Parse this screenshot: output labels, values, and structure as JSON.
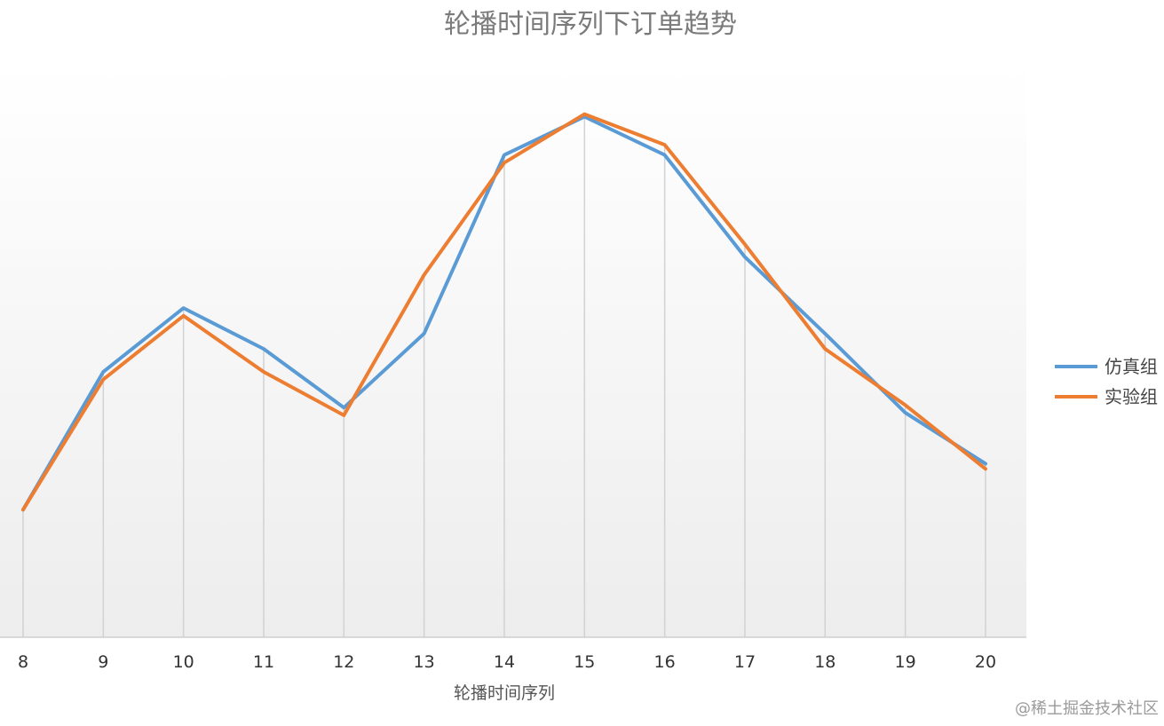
{
  "chart_data": {
    "type": "line",
    "title": "轮播时间序列下订单趋势",
    "xlabel": "轮播时间序列",
    "ylabel": "",
    "x": [
      8,
      9,
      10,
      11,
      12,
      13,
      14,
      15,
      16,
      17,
      18,
      19,
      20
    ],
    "ylim": [
      0,
      100
    ],
    "grid": "vertical",
    "legend_position": "right",
    "series": [
      {
        "name": "仿真组",
        "color": "#5B9BD5",
        "values": [
          25,
          52,
          64.5,
          56.5,
          45,
          59.5,
          94.5,
          102,
          94.5,
          74.5,
          59.5,
          44,
          34
        ]
      },
      {
        "name": "实验组",
        "color": "#ED7D31",
        "values": [
          25,
          50.5,
          63,
          52,
          43.5,
          71,
          93,
          102.5,
          96.5,
          77,
          56.5,
          45.5,
          33
        ]
      }
    ]
  },
  "watermark": "@稀土掘金技术社区"
}
